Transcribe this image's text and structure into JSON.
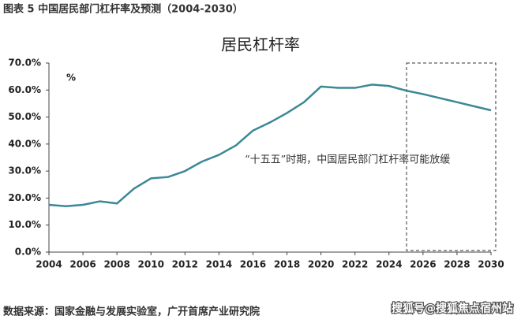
{
  "figure_caption": "图表 5 中国居民部门杠杆率及预测（2004-2030）",
  "source": "数据来源：国家金融与发展实验室，广开首席产业研究院",
  "watermark": "搜狐号@搜狐焦点宿州站",
  "chart_data": {
    "type": "line",
    "title": "居民杠杆率",
    "y_unit_label": "%",
    "annotation": "“十五五”时期，中国居民部门杠杆率可能放缓",
    "x": [
      2004,
      2005,
      2006,
      2007,
      2008,
      2009,
      2010,
      2011,
      2012,
      2013,
      2014,
      2015,
      2016,
      2017,
      2018,
      2019,
      2020,
      2021,
      2022,
      2023,
      2024,
      2025,
      2026,
      2027,
      2028,
      2029,
      2030
    ],
    "series": [
      {
        "name": "居民杠杆率",
        "color": "#3a8896",
        "values": [
          17.5,
          17.0,
          17.5,
          18.8,
          18.0,
          23.5,
          27.3,
          27.8,
          30.0,
          33.5,
          36.0,
          39.5,
          45.0,
          48.0,
          51.5,
          55.5,
          61.3,
          60.8,
          60.8,
          62.0,
          61.5,
          59.8,
          58.5,
          57.0,
          55.5,
          54.0,
          52.5
        ]
      }
    ],
    "xlim": [
      2004,
      2030
    ],
    "xticks": [
      2004,
      2006,
      2008,
      2010,
      2012,
      2014,
      2016,
      2018,
      2020,
      2022,
      2024,
      2026,
      2028,
      2030
    ],
    "ylim": [
      0,
      70
    ],
    "yticks": [
      {
        "value": 0,
        "label": "0.0%"
      },
      {
        "value": 10,
        "label": "10.0%"
      },
      {
        "value": 20,
        "label": "20.0%"
      },
      {
        "value": 30,
        "label": "30.0%"
      },
      {
        "value": 40,
        "label": "40.0%"
      },
      {
        "value": 50,
        "label": "50.0%"
      },
      {
        "value": 60,
        "label": "60.0%"
      },
      {
        "value": 70,
        "label": "70.0%"
      }
    ],
    "grid": false
  }
}
